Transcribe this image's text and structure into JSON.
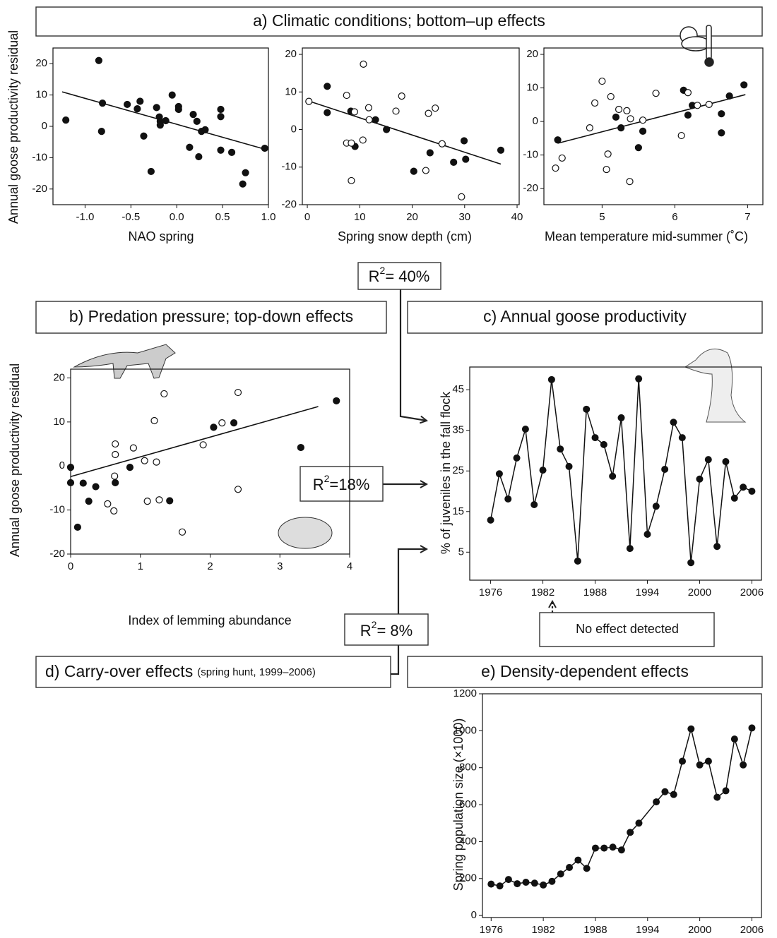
{
  "panels": {
    "a": "a) Climatic conditions; bottom–up effects",
    "b": "b) Predation pressure; top-down effects",
    "c": "c) Annual goose productivity",
    "d": "d) Carry-over effects",
    "d_note": "(spring hunt, 1999–2006)",
    "e": "e) Density-dependent effects"
  },
  "links": [
    {
      "symbol": "R",
      "power": "2",
      "text": "= 40%"
    },
    {
      "symbol": "R",
      "power": "2",
      "text": "=18%"
    },
    {
      "symbol": "R",
      "power": "2",
      "text": "= 8%"
    }
  ],
  "no_effect": "No effect detected",
  "chart_data": [
    {
      "type": "scatter",
      "xlabel": "NAO spring",
      "ylabel": "Annual goose productivity residual",
      "xlim": [
        -1.35,
        1.0
      ],
      "ylim": [
        -25,
        25
      ],
      "xticks": [
        {
          "value": -1,
          "label": "-1.0"
        },
        -0.5,
        {
          "value": 0,
          "label": "0.0"
        },
        0.5,
        {
          "value": 1,
          "label": "1.0"
        }
      ],
      "yticks": [
        -20,
        -10,
        0,
        10,
        20
      ],
      "series": [
        {
          "marker": "filled",
          "x": [
            -1.21,
            -0.85,
            -0.81,
            -0.82,
            -0.54,
            -0.43,
            -0.4,
            -0.36,
            -0.28,
            -0.22,
            -0.19,
            -0.18,
            -0.18,
            -0.12,
            -0.05,
            0.02,
            0.02,
            0.14,
            0.18,
            0.22,
            0.24,
            0.27,
            0.31,
            0.48,
            0.48,
            0.48,
            0.6,
            0.75,
            0.72,
            0.96
          ],
          "y": [
            2,
            21,
            7.4,
            -1.6,
            7,
            5.6,
            8,
            -3.1,
            -14.4,
            6,
            3,
            1.6,
            0.4,
            1.8,
            10,
            6.3,
            5.4,
            -6.7,
            3.8,
            1.6,
            -9.7,
            -1.6,
            -1.1,
            5.4,
            3.1,
            -7.6,
            -8.3,
            -14.8,
            -18.4,
            -7
          ]
        }
      ],
      "fit": {
        "x": [
          -1.25,
          0.95
        ],
        "y": [
          11,
          -7.2
        ]
      }
    },
    {
      "type": "scatter",
      "xlabel": "Spring snow depth (cm)",
      "xlim": [
        -0.95,
        40.4
      ],
      "ylim": [
        -20,
        21.7
      ],
      "xticks": [
        0,
        10,
        20,
        30,
        40
      ],
      "yticks": [
        -20,
        -10,
        0,
        10,
        20
      ],
      "series": [
        {
          "marker": "filled",
          "x": [
            3.8,
            3.8,
            8.3,
            9.1,
            13,
            15.1,
            20.3,
            23.4,
            27.9,
            29.9,
            30.2,
            36.9
          ],
          "y": [
            11.5,
            4.5,
            4.9,
            -4.5,
            2.6,
            0,
            -11.1,
            -6.2,
            -8.7,
            -3,
            -7.9,
            -5.5
          ]
        },
        {
          "marker": "open",
          "x": [
            0.3,
            7.5,
            9,
            10.7,
            11.7,
            11.8,
            7.5,
            8.4,
            10.6,
            8.4,
            16.9,
            18,
            23.1,
            24.4,
            25.7,
            22.6,
            29.4
          ],
          "y": [
            7.5,
            9.1,
            4.7,
            17.4,
            5.8,
            2.6,
            -3.6,
            -3.6,
            -2.8,
            -13.6,
            4.9,
            8.9,
            4.3,
            5.7,
            -3.8,
            -10.9,
            -17.9
          ]
        }
      ],
      "fit": {
        "x": [
          0,
          36.9
        ],
        "y": [
          7.7,
          -9.2
        ]
      }
    },
    {
      "type": "scatter",
      "xlabel": "Mean temperature mid-summer (˚C)",
      "xlim": [
        4.2,
        7.21
      ],
      "ylim": [
        -24.8,
        21.9
      ],
      "xticks": [
        5,
        6,
        7
      ],
      "yticks": [
        -20,
        -10,
        0,
        10,
        20
      ],
      "series": [
        {
          "marker": "filled",
          "x": [
            4.39,
            5.19,
            5.26,
            5.5,
            5.56,
            6.12,
            6.18,
            6.24,
            6.64,
            6.64,
            6.75,
            6.95
          ],
          "y": [
            -5.5,
            1.3,
            -1.9,
            -7.8,
            -2.9,
            9.3,
            1.9,
            4.8,
            2.3,
            -3.4,
            7.6,
            10.9
          ]
        },
        {
          "marker": "open",
          "x": [
            4.36,
            4.45,
            4.83,
            4.9,
            5,
            5.12,
            5.08,
            5.06,
            5.23,
            5.34,
            5.39,
            5.38,
            5.56,
            5.74,
            6.09,
            6.18,
            6.31,
            6.47
          ],
          "y": [
            -13.9,
            -10.9,
            -1.9,
            5.5,
            12,
            7.4,
            -9.7,
            -14.3,
            3.6,
            3.2,
            0.8,
            -17.9,
            0.4,
            8.4,
            -4.2,
            8.6,
            4.8,
            5.1
          ]
        }
      ],
      "fit": {
        "x": [
          4.39,
          6.97
        ],
        "y": [
          -6.5,
          8
        ]
      }
    },
    {
      "type": "scatter",
      "xlabel": "Index of lemming abundance",
      "ylabel": "Annual goose productivity residual",
      "xlim": [
        0,
        4
      ],
      "ylim": [
        -20,
        22
      ],
      "xticks": [
        0,
        1,
        2,
        3,
        4
      ],
      "yticks": [
        -20,
        -10,
        0,
        10,
        20
      ],
      "series": [
        {
          "marker": "filled",
          "x": [
            0,
            0,
            0.1,
            0.18,
            0.26,
            0.36,
            0.64,
            0.85,
            1.42,
            2.05,
            2.34,
            3.3,
            3.81
          ],
          "y": [
            -0.3,
            -3.8,
            -13.9,
            -3.9,
            -8,
            -4.7,
            -3.8,
            -0.3,
            -7.9,
            8.8,
            9.8,
            4.2,
            14.8
          ]
        },
        {
          "marker": "open",
          "x": [
            0.64,
            0.64,
            0.63,
            0.53,
            0.62,
            0.9,
            1.06,
            1.1,
            1.2,
            1.23,
            1.34,
            1.27,
            1.6,
            1.9,
            2.17,
            2.4,
            2.4
          ],
          "y": [
            5,
            2.6,
            -2.3,
            -8.6,
            -10.2,
            4.1,
            1.2,
            -8,
            10.3,
            0.9,
            16.4,
            -7.7,
            -15,
            4.8,
            9.8,
            16.7,
            -5.3
          ]
        }
      ],
      "fit": {
        "x": [
          0,
          3.55
        ],
        "y": [
          -2.4,
          13.5
        ]
      }
    },
    {
      "type": "line",
      "ylabel": "% of juveniles in the fall flock",
      "xlim": [
        1973.6,
        2007.1
      ],
      "ylim": [
        -1.9,
        50.6
      ],
      "xticks": [
        1976,
        1982,
        1988,
        1994,
        2000,
        2006
      ],
      "yticks": [
        5,
        15,
        25,
        35,
        45
      ],
      "x": [
        1976,
        1977,
        1978,
        1979,
        1980,
        1981,
        1982,
        1983,
        1984,
        1985,
        1986,
        1987,
        1988,
        1989,
        1990,
        1991,
        1992,
        1993,
        1994,
        1995,
        1996,
        1997,
        1998,
        1999,
        2000,
        2001,
        2002,
        2003,
        2004,
        2005,
        2006
      ],
      "values": [
        12.9,
        24.3,
        18.1,
        28.2,
        35.3,
        16.7,
        25.2,
        47.5,
        30.4,
        26.1,
        2.8,
        40.2,
        33.2,
        31.5,
        23.7,
        38.1,
        5.9,
        47.7,
        9.4,
        16.3,
        25.4,
        37,
        33.2,
        2.4,
        23,
        27.8,
        6.4,
        27.3,
        18.3,
        21,
        20
      ]
    },
    {
      "type": "line",
      "ylabel": "Spring population size (×1000)",
      "xlim": [
        1975.0,
        2007.1
      ],
      "ylim": [
        -11,
        1200
      ],
      "xticks": [
        1976,
        1982,
        1988,
        1994,
        2000,
        2006
      ],
      "yticks": [
        0,
        200,
        400,
        600,
        800,
        1000,
        1200
      ],
      "x": [
        1976,
        1977,
        1978,
        1979,
        1980,
        1981,
        1982,
        1983,
        1984,
        1985,
        1986,
        1987,
        1988,
        1989,
        1990,
        1991,
        1992,
        1993,
        1995,
        1996,
        1997,
        1998,
        1999,
        2000,
        2001,
        2002,
        2003,
        2004,
        2005,
        2006
      ],
      "values": [
        170,
        160,
        195,
        172,
        180,
        175,
        165,
        185,
        225,
        260,
        300,
        255,
        365,
        365,
        370,
        355,
        450,
        500,
        615,
        670,
        655,
        835,
        1010,
        815,
        835,
        640,
        675,
        955,
        815,
        1015
      ]
    }
  ]
}
